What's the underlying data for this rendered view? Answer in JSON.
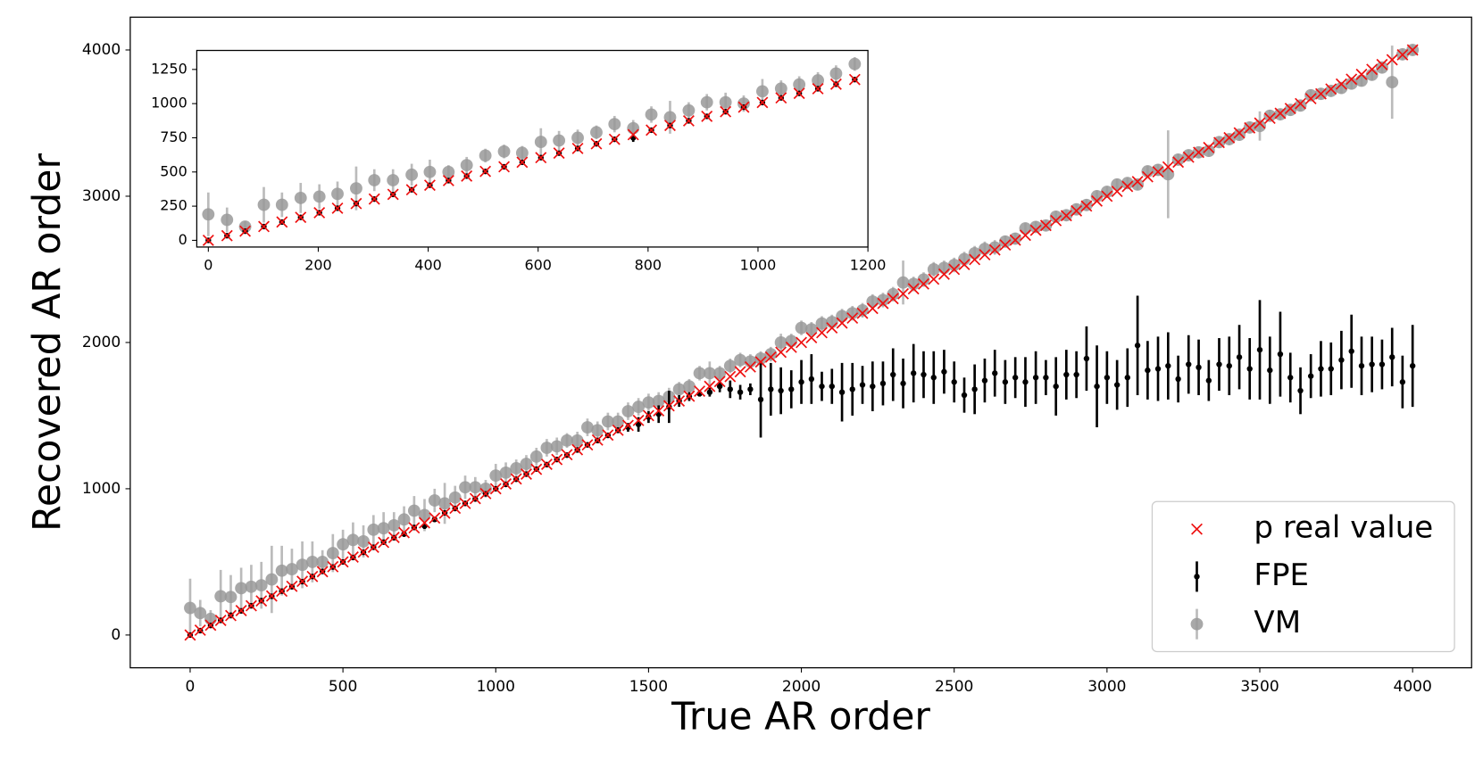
{
  "chart_data": [
    {
      "type": "scatter",
      "xlabel": "True AR order",
      "ylabel": "Recovered AR order",
      "legend": "lower right",
      "xlim": [
        -196,
        4193
      ],
      "ylim": [
        -224,
        4224
      ],
      "xticks": [
        0,
        500,
        1000,
        1500,
        2000,
        2500,
        3000,
        3500,
        4000
      ],
      "yticks": [
        0,
        1000,
        2000,
        3000,
        4000
      ],
      "x": [
        0,
        33,
        67,
        100,
        133,
        167,
        200,
        233,
        267,
        300,
        333,
        367,
        400,
        433,
        467,
        500,
        533,
        567,
        600,
        633,
        667,
        700,
        733,
        767,
        800,
        833,
        867,
        900,
        933,
        967,
        1000,
        1033,
        1067,
        1100,
        1133,
        1167,
        1200,
        1233,
        1267,
        1300,
        1333,
        1367,
        1400,
        1433,
        1467,
        1500,
        1533,
        1567,
        1600,
        1633,
        1667,
        1700,
        1733,
        1767,
        1800,
        1833,
        1867,
        1900,
        1933,
        1967,
        2000,
        2033,
        2067,
        2100,
        2133,
        2167,
        2200,
        2233,
        2267,
        2300,
        2333,
        2367,
        2400,
        2433,
        2467,
        2500,
        2533,
        2567,
        2600,
        2633,
        2667,
        2700,
        2733,
        2767,
        2800,
        2833,
        2867,
        2900,
        2933,
        2967,
        3000,
        3033,
        3067,
        3100,
        3133,
        3167,
        3200,
        3233,
        3267,
        3300,
        3333,
        3367,
        3400,
        3433,
        3467,
        3500,
        3533,
        3567,
        3600,
        3633,
        3667,
        3700,
        3733,
        3767,
        3800,
        3833,
        3867,
        3900,
        3933,
        3967,
        4000
      ],
      "series": [
        {
          "name": "p real value",
          "color": "#ee1111",
          "marker": "x",
          "values": [
            0,
            33,
            67,
            100,
            133,
            167,
            200,
            233,
            267,
            300,
            333,
            367,
            400,
            433,
            467,
            500,
            533,
            567,
            600,
            633,
            667,
            700,
            733,
            767,
            800,
            833,
            867,
            900,
            933,
            967,
            1000,
            1033,
            1067,
            1100,
            1133,
            1167,
            1200,
            1233,
            1267,
            1300,
            1333,
            1367,
            1400,
            1433,
            1467,
            1500,
            1533,
            1567,
            1600,
            1633,
            1667,
            1700,
            1733,
            1767,
            1800,
            1833,
            1867,
            1900,
            1933,
            1967,
            2000,
            2033,
            2067,
            2100,
            2133,
            2167,
            2200,
            2233,
            2267,
            2300,
            2333,
            2367,
            2400,
            2433,
            2467,
            2500,
            2533,
            2567,
            2600,
            2633,
            2667,
            2700,
            2733,
            2767,
            2800,
            2833,
            2867,
            2900,
            2933,
            2967,
            3000,
            3033,
            3067,
            3100,
            3133,
            3167,
            3200,
            3233,
            3267,
            3300,
            3333,
            3367,
            3400,
            3433,
            3467,
            3500,
            3533,
            3567,
            3600,
            3633,
            3667,
            3700,
            3733,
            3767,
            3800,
            3833,
            3867,
            3900,
            3933,
            3967,
            4000
          ]
        },
        {
          "name": "FPE",
          "color": "#000000",
          "marker": ".",
          "values": [
            0,
            30,
            65,
            100,
            135,
            165,
            200,
            235,
            265,
            300,
            330,
            365,
            400,
            435,
            465,
            500,
            530,
            565,
            600,
            635,
            665,
            690,
            735,
            745,
            790,
            835,
            865,
            900,
            930,
            965,
            1000,
            1030,
            1065,
            1100,
            1135,
            1165,
            1200,
            1230,
            1265,
            1300,
            1330,
            1365,
            1400,
            1420,
            1440,
            1490,
            1510,
            1560,
            1600,
            1630,
            1650,
            1660,
            1700,
            1680,
            1660,
            1680,
            1610,
            1680,
            1670,
            1680,
            1730,
            1750,
            1700,
            1700,
            1660,
            1680,
            1710,
            1700,
            1720,
            1780,
            1720,
            1790,
            1780,
            1760,
            1800,
            1730,
            1640,
            1680,
            1740,
            1790,
            1730,
            1760,
            1730,
            1760,
            1760,
            1700,
            1780,
            1780,
            1890,
            1700,
            1760,
            1710,
            1760,
            1980,
            1810,
            1820,
            1840,
            1750,
            1850,
            1830,
            1740,
            1850,
            1840,
            1900,
            1820,
            1950,
            1810,
            1920,
            1760,
            1670,
            1770,
            1820,
            1820,
            1880,
            1940,
            1840,
            1850,
            1850,
            1900,
            1730,
            1840
          ],
          "errors": [
            10,
            10,
            10,
            10,
            10,
            10,
            10,
            10,
            10,
            10,
            10,
            10,
            10,
            10,
            10,
            10,
            10,
            10,
            10,
            10,
            10,
            15,
            15,
            20,
            15,
            15,
            15,
            15,
            15,
            15,
            15,
            15,
            15,
            15,
            15,
            15,
            15,
            15,
            15,
            15,
            15,
            15,
            20,
            30,
            50,
            40,
            60,
            110,
            40,
            30,
            20,
            30,
            40,
            60,
            50,
            40,
            260,
            180,
            160,
            130,
            150,
            170,
            100,
            120,
            200,
            180,
            130,
            170,
            150,
            180,
            170,
            200,
            160,
            180,
            150,
            140,
            120,
            170,
            150,
            160,
            150,
            140,
            170,
            180,
            120,
            200,
            170,
            160,
            220,
            280,
            180,
            170,
            200,
            340,
            200,
            220,
            230,
            160,
            200,
            190,
            140,
            180,
            200,
            220,
            210,
            340,
            230,
            290,
            170,
            160,
            150,
            190,
            180,
            200,
            250,
            200,
            190,
            170,
            200,
            180,
            280
          ]
        },
        {
          "name": "VM",
          "color": "#999999",
          "marker": "o",
          "values": [
            185,
            150,
            110,
            265,
            260,
            320,
            330,
            340,
            380,
            440,
            450,
            480,
            500,
            500,
            560,
            620,
            650,
            640,
            720,
            730,
            750,
            790,
            850,
            820,
            920,
            900,
            940,
            1010,
            1010,
            1000,
            1090,
            1110,
            1140,
            1170,
            1220,
            1280,
            1290,
            1330,
            1330,
            1420,
            1400,
            1460,
            1460,
            1530,
            1560,
            1590,
            1600,
            1630,
            1680,
            1700,
            1790,
            1790,
            1790,
            1840,
            1880,
            1870,
            1890,
            1920,
            2000,
            2010,
            2100,
            2090,
            2130,
            2140,
            2180,
            2200,
            2220,
            2280,
            2290,
            2330,
            2410,
            2400,
            2430,
            2500,
            2510,
            2530,
            2570,
            2610,
            2640,
            2650,
            2690,
            2710,
            2780,
            2790,
            2800,
            2860,
            2870,
            2910,
            2940,
            3000,
            3030,
            3080,
            3090,
            3080,
            3170,
            3180,
            3150,
            3250,
            3280,
            3300,
            3310,
            3370,
            3390,
            3420,
            3470,
            3480,
            3550,
            3560,
            3590,
            3620,
            3690,
            3700,
            3720,
            3740,
            3770,
            3790,
            3830,
            3880,
            3780,
            3970,
            4000
          ],
          "errors": [
            200,
            90,
            60,
            180,
            150,
            140,
            150,
            160,
            230,
            170,
            140,
            160,
            140,
            80,
            130,
            100,
            120,
            110,
            100,
            110,
            90,
            90,
            100,
            110,
            80,
            140,
            80,
            80,
            70,
            60,
            80,
            70,
            60,
            60,
            60,
            60,
            60,
            50,
            60,
            60,
            60,
            60,
            60,
            60,
            60,
            60,
            60,
            60,
            50,
            50,
            50,
            80,
            50,
            50,
            50,
            50,
            50,
            50,
            60,
            50,
            50,
            50,
            50,
            50,
            50,
            50,
            50,
            50,
            50,
            50,
            150,
            50,
            50,
            50,
            50,
            50,
            50,
            50,
            50,
            50,
            40,
            40,
            40,
            40,
            40,
            40,
            40,
            40,
            40,
            40,
            40,
            40,
            40,
            40,
            40,
            40,
            300,
            40,
            40,
            40,
            40,
            40,
            40,
            40,
            40,
            100,
            40,
            40,
            40,
            40,
            40,
            40,
            40,
            40,
            40,
            40,
            40,
            40,
            250,
            40,
            40
          ]
        }
      ]
    },
    {
      "type": "scatter",
      "xlim": [
        -21,
        1200
      ],
      "ylim": [
        -49,
        1389
      ],
      "xticks": [
        0,
        200,
        400,
        600,
        800,
        1000,
        1200
      ],
      "yticks": [
        0,
        250,
        500,
        750,
        1000,
        1250
      ],
      "x": [
        0,
        34,
        67,
        101,
        134,
        168,
        202,
        235,
        269,
        302,
        336,
        370,
        403,
        437,
        470,
        504,
        538,
        571,
        605,
        638,
        672,
        706,
        739,
        773,
        806,
        840,
        874,
        907,
        941,
        974,
        1008,
        1042,
        1075,
        1109,
        1142,
        1176
      ],
      "series": [
        {
          "color": "#ee1111",
          "marker": "x",
          "values": [
            0,
            34,
            67,
            101,
            134,
            168,
            202,
            235,
            269,
            302,
            336,
            370,
            403,
            437,
            470,
            504,
            538,
            571,
            605,
            638,
            672,
            706,
            739,
            773,
            806,
            840,
            874,
            907,
            941,
            974,
            1008,
            1042,
            1075,
            1109,
            1142,
            1176
          ]
        },
        {
          "color": "#000000",
          "marker": ".",
          "values": [
            0,
            34,
            67,
            101,
            134,
            168,
            202,
            235,
            269,
            302,
            336,
            370,
            403,
            437,
            470,
            504,
            538,
            571,
            605,
            638,
            672,
            706,
            739,
            750,
            806,
            840,
            874,
            907,
            941,
            974,
            1008,
            1042,
            1075,
            1109,
            1142,
            1176
          ],
          "errors": [
            15,
            15,
            15,
            15,
            15,
            15,
            15,
            15,
            15,
            15,
            15,
            15,
            15,
            15,
            15,
            15,
            15,
            15,
            15,
            15,
            15,
            15,
            15,
            30,
            15,
            15,
            15,
            15,
            15,
            15,
            15,
            15,
            15,
            15,
            15,
            15
          ]
        },
        {
          "color": "#999999",
          "marker": "o",
          "values": [
            190,
            150,
            100,
            260,
            260,
            310,
            320,
            340,
            380,
            440,
            440,
            480,
            500,
            500,
            550,
            620,
            650,
            640,
            720,
            730,
            750,
            790,
            850,
            820,
            920,
            900,
            950,
            1010,
            1010,
            1000,
            1090,
            1110,
            1140,
            1170,
            1220,
            1290
          ],
          "errors": [
            160,
            90,
            40,
            130,
            90,
            110,
            90,
            90,
            160,
            80,
            80,
            80,
            90,
            50,
            60,
            50,
            50,
            50,
            100,
            70,
            60,
            50,
            60,
            60,
            60,
            120,
            60,
            60,
            70,
            60,
            90,
            60,
            60,
            60,
            60,
            50
          ]
        }
      ]
    }
  ]
}
